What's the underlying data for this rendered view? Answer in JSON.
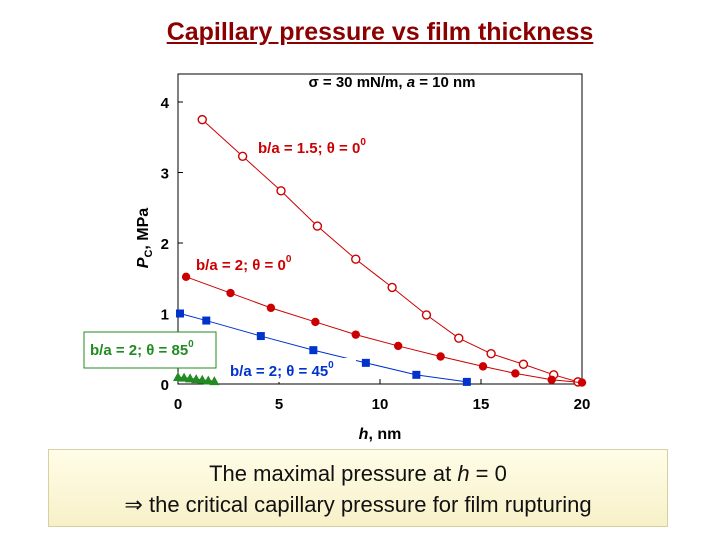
{
  "title": "Capillary pressure vs film thickness",
  "chart_data": {
    "type": "scatter",
    "subtitle": {
      "sigma": "σ",
      "rest_a": " = 30 mN/m, ",
      "a": "a",
      "rest_b": " = 10 nm"
    },
    "xlabel": {
      "italic": "h",
      "rest": ", nm"
    },
    "ylabel": {
      "italic": "P",
      "sub": "C",
      "rest": ", MPa"
    },
    "xlim": [
      0,
      20
    ],
    "ylim": [
      0,
      4
    ],
    "xticks": [
      "0",
      "5",
      "10",
      "15",
      "20"
    ],
    "yticks": [
      "0",
      "1",
      "2",
      "3",
      "4"
    ],
    "grid": false,
    "series": [
      {
        "label_text": "b/a = 1.5; θ = 0",
        "label_sup": "0",
        "color": "#cc0000",
        "marker": "open-circle",
        "x": [
          1.2,
          3.2,
          5.1,
          6.9,
          8.8,
          10.6,
          12.3,
          13.9,
          15.5,
          17.1,
          18.6,
          19.8
        ],
        "y": [
          3.75,
          3.23,
          2.74,
          2.24,
          1.77,
          1.37,
          0.98,
          0.65,
          0.43,
          0.28,
          0.13,
          0.03
        ]
      },
      {
        "label_text": "b/a = 2; θ = 0",
        "label_sup": "0",
        "color": "#cc0000",
        "marker": "filled-circle",
        "x": [
          0.4,
          2.6,
          4.6,
          6.8,
          8.8,
          10.9,
          13.0,
          15.1,
          16.7,
          18.5,
          20.0
        ],
        "y": [
          1.52,
          1.29,
          1.08,
          0.88,
          0.7,
          0.54,
          0.39,
          0.25,
          0.15,
          0.06,
          0.02
        ]
      },
      {
        "label_text": "b/a = 2; θ = 45",
        "label_sup": "0",
        "color": "#0033cc",
        "marker": "filled-square",
        "x": [
          0.1,
          1.4,
          4.1,
          6.7,
          9.3,
          11.8,
          14.3
        ],
        "y": [
          1.0,
          0.9,
          0.68,
          0.48,
          0.3,
          0.13,
          0.03
        ]
      },
      {
        "label_text": "b/a = 2; θ = 85",
        "label_sup": "0",
        "color": "#228b22",
        "marker": "filled-triangle",
        "x": [
          0.0,
          0.3,
          0.6,
          0.9,
          1.2,
          1.5,
          1.8
        ],
        "y": [
          0.1,
          0.09,
          0.08,
          0.07,
          0.06,
          0.05,
          0.04
        ]
      }
    ]
  },
  "conclusion": {
    "line1_a": "The maximal pressure at ",
    "line1_h": "h",
    "line1_b": " = 0",
    "arrow": "⇒",
    "line2": " the critical capillary pressure for film rupturing"
  }
}
